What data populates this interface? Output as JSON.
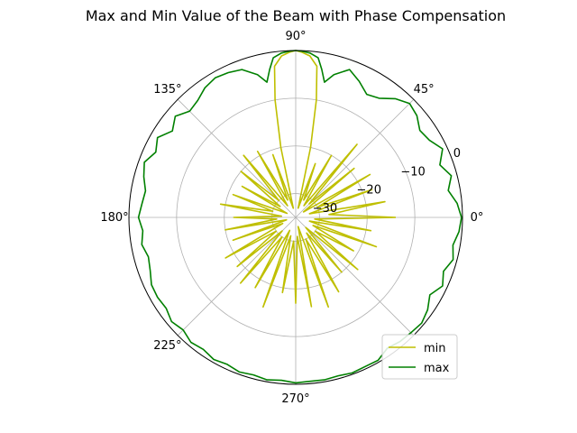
{
  "chart_data": {
    "type": "polar-line",
    "title": "Max and Min Value of the Beam with Phase Compensation",
    "theta_ticks": [
      "0°",
      "45°",
      "90°",
      "135°",
      "180°",
      "225°",
      "270°"
    ],
    "theta_tick_degrees": [
      0,
      45,
      90,
      135,
      180,
      225,
      270
    ],
    "r_ticks": [
      "−30",
      "−20",
      "−10",
      "0"
    ],
    "r_tick_values": [
      -30,
      -20,
      -10,
      0
    ],
    "rlim": [
      -35,
      0
    ],
    "grid": true,
    "legend_position": "lower-right",
    "series": [
      {
        "name": "min",
        "color": "#bfbf00",
        "theta_deg": [
          0,
          5,
          10,
          15,
          20,
          25,
          30,
          35,
          40,
          45,
          50,
          55,
          60,
          65,
          70,
          75,
          78,
          80,
          82,
          85,
          88,
          90,
          92,
          95,
          98,
          100,
          102,
          105,
          110,
          115,
          120,
          125,
          130,
          135,
          140,
          145,
          150,
          155,
          160,
          165,
          170,
          175,
          180,
          185,
          190,
          195,
          200,
          205,
          210,
          215,
          220,
          225,
          230,
          235,
          240,
          245,
          250,
          255,
          260,
          265,
          270,
          275,
          280,
          285,
          290,
          295,
          300,
          305,
          310,
          315,
          320,
          325,
          330,
          335,
          340,
          345,
          350,
          355,
          360
        ],
        "r": [
          -14,
          -28,
          -16,
          -32,
          -18,
          -30,
          -17,
          -33,
          -19,
          -31,
          -15,
          -32,
          -20,
          -31,
          -23,
          -33,
          -20,
          -10,
          -3,
          -1,
          -0.3,
          0,
          -0.3,
          -1,
          -3,
          -10,
          -20,
          -33,
          -21,
          -31,
          -19,
          -32,
          -18,
          -30,
          -20,
          -31,
          -22,
          -33,
          -21,
          -30,
          -19,
          -32,
          -22,
          -31,
          -20,
          -33,
          -21,
          -32,
          -18,
          -30,
          -19,
          -31,
          -17,
          -30,
          -18,
          -32,
          -15,
          -31,
          -19,
          -30,
          -17,
          -31,
          -16,
          -33,
          -15,
          -30,
          -17,
          -31,
          -20,
          -32,
          -18,
          -30,
          -21,
          -31,
          -17,
          -32,
          -19,
          -31,
          -14
        ]
      },
      {
        "name": "max",
        "color": "#008000",
        "theta_deg": [
          0,
          5,
          10,
          15,
          20,
          25,
          30,
          35,
          40,
          45,
          50,
          55,
          60,
          65,
          70,
          75,
          78,
          80,
          82,
          85,
          88,
          90,
          92,
          95,
          98,
          100,
          102,
          105,
          110,
          115,
          120,
          125,
          130,
          135,
          140,
          145,
          150,
          155,
          160,
          165,
          170,
          175,
          180,
          185,
          190,
          195,
          200,
          205,
          210,
          215,
          220,
          225,
          230,
          235,
          240,
          245,
          250,
          255,
          260,
          265,
          270,
          275,
          280,
          285,
          290,
          295,
          300,
          305,
          310,
          315,
          320,
          325,
          330,
          335,
          340,
          345,
          350,
          355,
          360
        ],
        "r": [
          -0.2,
          -1,
          -2.5,
          -1.2,
          -2.8,
          -1,
          -2.6,
          -3.2,
          -1.8,
          -1.2,
          -2.5,
          -4.5,
          -5.2,
          -3.5,
          -2,
          -4,
          -6,
          -3.5,
          -1.2,
          -0.4,
          -0.1,
          0,
          -0.1,
          -0.4,
          -1.2,
          -3.5,
          -6,
          -4,
          -2,
          -1.5,
          -1.2,
          -1.8,
          -3,
          -3.5,
          -2,
          -3.4,
          -1.5,
          -2.6,
          -1.2,
          -2,
          -3,
          -2.6,
          -2,
          -2.8,
          -2.2,
          -3,
          -2.5,
          -1.6,
          -1.5,
          -1.8,
          -1,
          -1.6,
          -0.8,
          -1.2,
          -0.6,
          -1,
          -0.5,
          -0.8,
          -0.4,
          -0.7,
          -0.3,
          -0.5,
          -0.4,
          -0.6,
          -0.3,
          -0.5,
          -0.4,
          -1.5,
          -1,
          -0.8,
          -0.5,
          -1.2,
          -2.5,
          -1,
          -2,
          -0.8,
          -1.5,
          -0.6,
          -0.2
        ]
      }
    ]
  }
}
